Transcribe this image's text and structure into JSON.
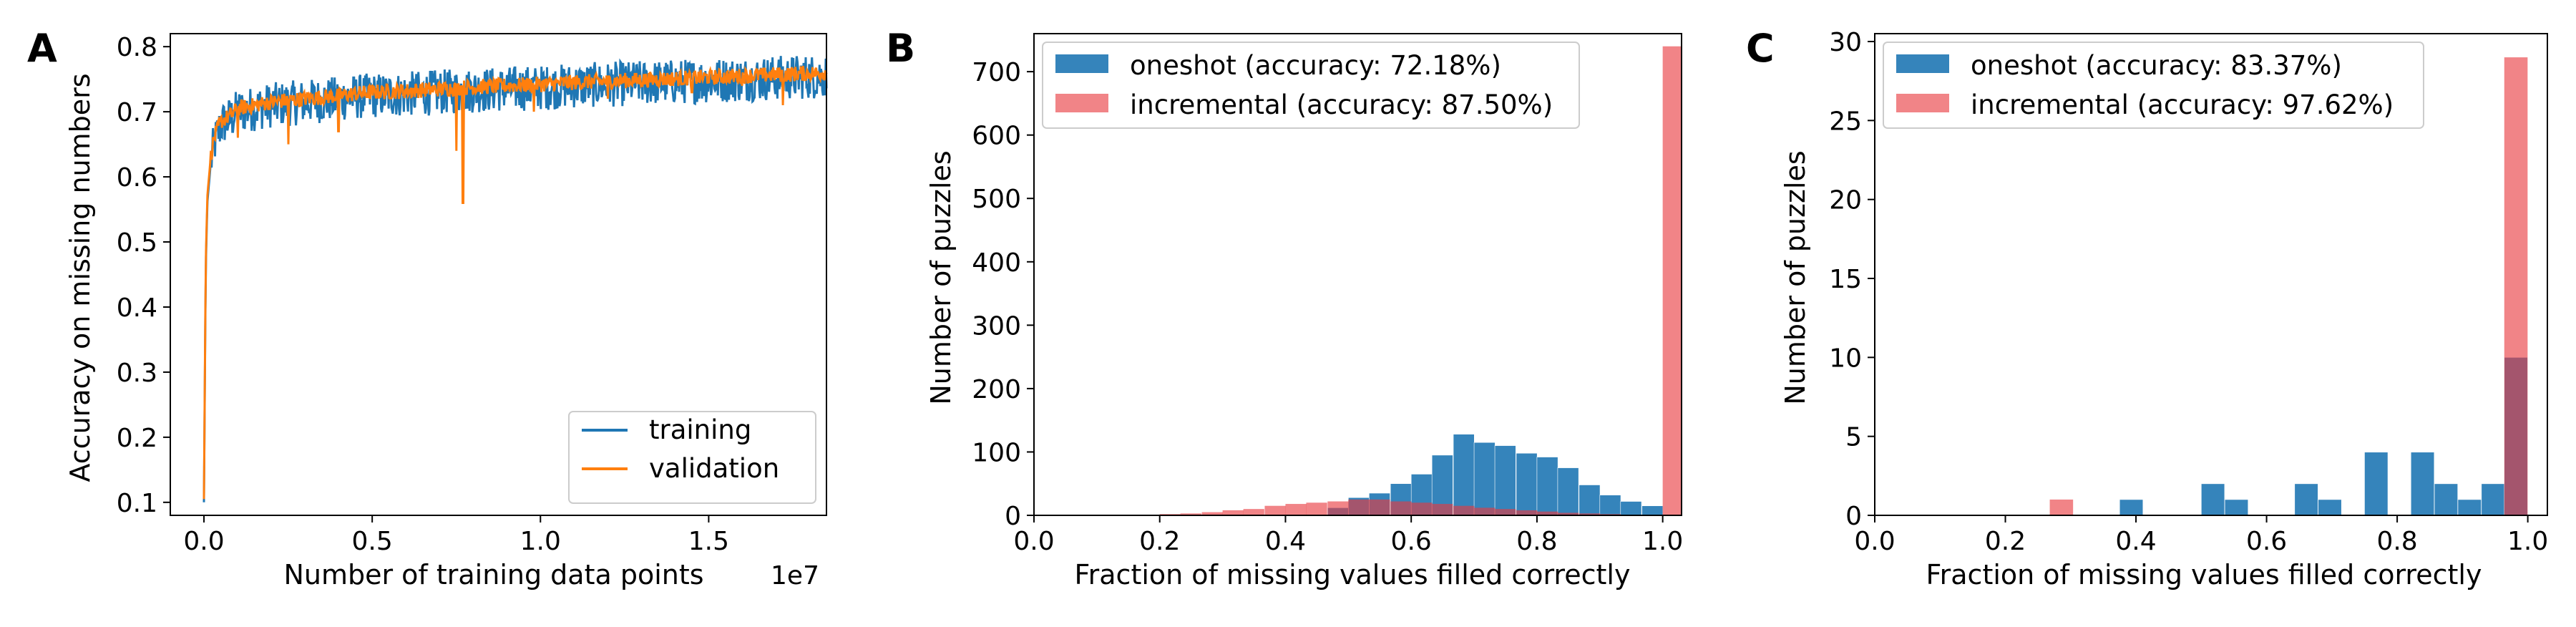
{
  "chart_data": [
    {
      "panel": "A",
      "type": "line",
      "xlabel": "Number of training data points",
      "ylabel": "Accuracy on missing numbers",
      "x_offset_text": "1e7",
      "xlim": [
        -0.1,
        1.85
      ],
      "ylim": [
        0.08,
        0.82
      ],
      "xticks": [
        0.0,
        0.5,
        1.0,
        1.5
      ],
      "xtick_labels": [
        "0.0",
        "0.5",
        "1.0",
        "1.5"
      ],
      "yticks": [
        0.1,
        0.2,
        0.3,
        0.4,
        0.5,
        0.6,
        0.7,
        0.8
      ],
      "ytick_labels": [
        "0.1",
        "0.2",
        "0.3",
        "0.4",
        "0.5",
        "0.6",
        "0.7",
        "0.8"
      ],
      "legend_position": "lower-right",
      "series": [
        {
          "name": "training",
          "color": "#1f77b4",
          "x": [
            0.0,
            0.005,
            0.01,
            0.02,
            0.03,
            0.05,
            0.08,
            0.1,
            0.15,
            0.2,
            0.3,
            0.4,
            0.5,
            0.6,
            0.7,
            0.8,
            0.9,
            1.0,
            1.1,
            1.2,
            1.3,
            1.4,
            1.5,
            1.6,
            1.7,
            1.8,
            1.85
          ],
          "y": [
            0.1,
            0.45,
            0.56,
            0.62,
            0.65,
            0.68,
            0.69,
            0.7,
            0.705,
            0.71,
            0.715,
            0.72,
            0.725,
            0.727,
            0.73,
            0.733,
            0.735,
            0.737,
            0.74,
            0.742,
            0.744,
            0.746,
            0.748,
            0.75,
            0.752,
            0.754,
            0.755
          ],
          "noise": 0.035
        },
        {
          "name": "validation",
          "color": "#ff7f0e",
          "x": [
            0.0,
            0.005,
            0.01,
            0.02,
            0.03,
            0.05,
            0.08,
            0.1,
            0.15,
            0.2,
            0.3,
            0.4,
            0.5,
            0.6,
            0.7,
            0.8,
            0.9,
            1.0,
            1.1,
            1.2,
            1.3,
            1.4,
            1.5,
            1.6,
            1.7,
            1.8,
            1.85
          ],
          "y": [
            0.105,
            0.46,
            0.57,
            0.63,
            0.66,
            0.685,
            0.695,
            0.705,
            0.71,
            0.715,
            0.72,
            0.725,
            0.73,
            0.732,
            0.735,
            0.738,
            0.74,
            0.742,
            0.745,
            0.747,
            0.749,
            0.751,
            0.753,
            0.755,
            0.757,
            0.759,
            0.76
          ],
          "noise": 0.012,
          "dips": [
            [
              0.1,
              0.66
            ],
            [
              0.25,
              0.65
            ],
            [
              0.4,
              0.67
            ],
            [
              0.75,
              0.64
            ],
            [
              0.77,
              0.56
            ],
            [
              0.98,
              0.7
            ],
            [
              1.2,
              0.72
            ],
            [
              1.45,
              0.73
            ],
            [
              1.6,
              0.74
            ],
            [
              1.72,
              0.71
            ]
          ]
        }
      ]
    },
    {
      "panel": "B",
      "type": "bar",
      "xlabel": "Fraction of missing values filled correctly",
      "ylabel": "Number of puzzles",
      "xlim": [
        0.0,
        1.03
      ],
      "ylim": [
        0,
        760
      ],
      "xticks": [
        0.0,
        0.2,
        0.4,
        0.6,
        0.8,
        1.0
      ],
      "xtick_labels": [
        "0.0",
        "0.2",
        "0.4",
        "0.6",
        "0.8",
        "1.0"
      ],
      "yticks": [
        0,
        100,
        200,
        300,
        400,
        500,
        600,
        700
      ],
      "ytick_labels": [
        "0",
        "100",
        "200",
        "300",
        "400",
        "500",
        "600",
        "700"
      ],
      "legend_position": "upper-left",
      "bin_width": 0.0333,
      "series": [
        {
          "name": "oneshot (accuracy: 72.18%)",
          "color": "#1f77b4",
          "bins": [
            0.467,
            0.5,
            0.533,
            0.567,
            0.6,
            0.633,
            0.667,
            0.7,
            0.733,
            0.767,
            0.8,
            0.833,
            0.867,
            0.9,
            0.933,
            0.967
          ],
          "values": [
            12,
            28,
            35,
            50,
            65,
            95,
            128,
            115,
            110,
            98,
            92,
            75,
            48,
            32,
            22,
            15
          ]
        },
        {
          "name": "incremental (accuracy: 87.50%)",
          "color": "#e8383d",
          "bins": [
            0.2,
            0.233,
            0.267,
            0.3,
            0.333,
            0.367,
            0.4,
            0.433,
            0.467,
            0.5,
            0.533,
            0.567,
            0.6,
            0.633,
            0.667,
            0.7,
            0.733,
            0.767,
            0.8,
            0.833,
            0.867,
            0.9,
            0.933,
            0.967,
            1.0
          ],
          "values": [
            2,
            3,
            5,
            8,
            10,
            15,
            18,
            20,
            22,
            25,
            25,
            22,
            20,
            18,
            15,
            12,
            10,
            8,
            6,
            4,
            3,
            2,
            1,
            1,
            740
          ]
        }
      ]
    },
    {
      "panel": "C",
      "type": "bar",
      "xlabel": "Fraction of missing values filled correctly",
      "ylabel": "Number of puzzles",
      "xlim": [
        0.0,
        1.03
      ],
      "ylim": [
        0,
        30.5
      ],
      "xticks": [
        0.0,
        0.2,
        0.4,
        0.6,
        0.8,
        1.0
      ],
      "xtick_labels": [
        "0.0",
        "0.2",
        "0.4",
        "0.6",
        "0.8",
        "1.0"
      ],
      "yticks": [
        0,
        5,
        10,
        15,
        20,
        25,
        30
      ],
      "ytick_labels": [
        "0",
        "5",
        "10",
        "15",
        "20",
        "25",
        "30"
      ],
      "legend_position": "upper-left",
      "bin_width": 0.0357,
      "series": [
        {
          "name": "oneshot (accuracy: 83.37%)",
          "color": "#1f77b4",
          "bins": [
            0.375,
            0.5,
            0.536,
            0.643,
            0.679,
            0.75,
            0.821,
            0.857,
            0.893,
            0.929,
            0.964
          ],
          "values": [
            1,
            2,
            1,
            2,
            1,
            4,
            4,
            2,
            1,
            2,
            10
          ]
        },
        {
          "name": "incremental (accuracy: 97.62%)",
          "color": "#e8383d",
          "bins": [
            0.268,
            0.964
          ],
          "values": [
            1,
            29
          ]
        }
      ]
    }
  ]
}
